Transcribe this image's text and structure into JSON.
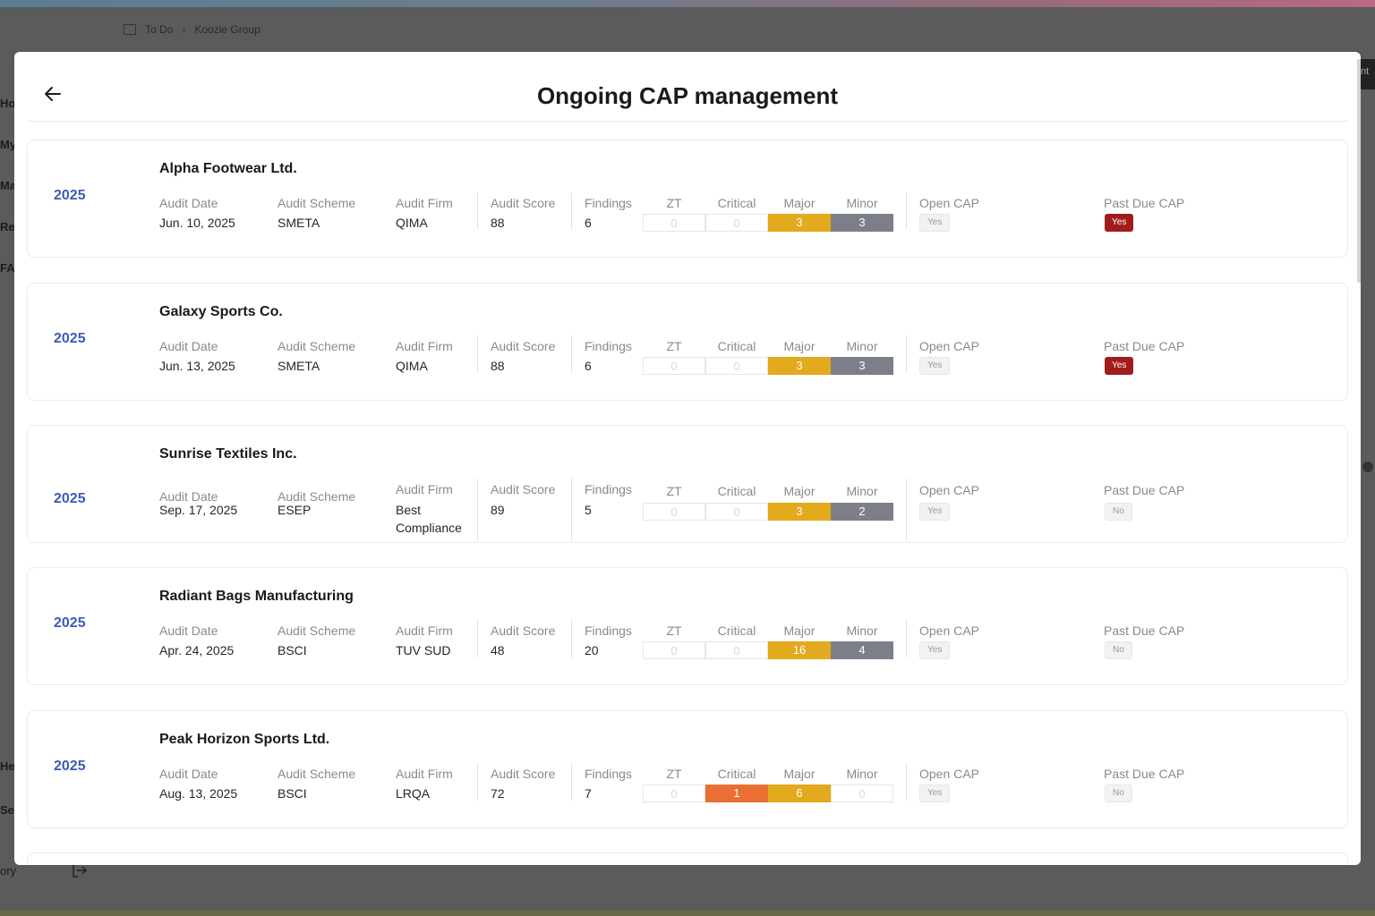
{
  "background": {
    "breadcrumb": {
      "item1": "To Do",
      "item2": "Koozie Group"
    },
    "side_items": [
      "Ho",
      "My",
      "Ma",
      "Re",
      "FA",
      "He",
      "Se",
      "ory"
    ],
    "right_tab": "nt"
  },
  "modal": {
    "title": "Ongoing CAP management",
    "labels": {
      "audit_date": "Audit Date",
      "audit_scheme": "Audit Scheme",
      "audit_firm": "Audit Firm",
      "audit_score": "Audit Score",
      "findings": "Findings",
      "zt": "ZT",
      "critical": "Critical",
      "major": "Major",
      "minor": "Minor",
      "open_cap": "Open CAP",
      "past_due_cap": "Past Due CAP"
    },
    "cards": [
      {
        "year": "2025",
        "name": "Alpha Footwear Ltd.",
        "audit_date": "Jun. 10, 2025",
        "audit_scheme": "SMETA",
        "audit_firm": "QIMA",
        "audit_score": "88",
        "findings": "6",
        "zt": "0",
        "critical": "0",
        "major": "3",
        "minor": "3",
        "open_cap": "Yes",
        "past_due_cap": "Yes"
      },
      {
        "year": "2025",
        "name": "Galaxy Sports Co.",
        "audit_date": "Jun. 13, 2025",
        "audit_scheme": "SMETA",
        "audit_firm": "QIMA",
        "audit_score": "88",
        "findings": "6",
        "zt": "0",
        "critical": "0",
        "major": "3",
        "minor": "3",
        "open_cap": "Yes",
        "past_due_cap": "Yes"
      },
      {
        "year": "2025",
        "name": "Sunrise Textiles Inc.",
        "audit_date": "Sep. 17, 2025",
        "audit_scheme": "ESEP",
        "audit_firm": "Best Compliance",
        "audit_score": "89",
        "findings": "5",
        "zt": "0",
        "critical": "0",
        "major": "3",
        "minor": "2",
        "open_cap": "Yes",
        "past_due_cap": "No"
      },
      {
        "year": "2025",
        "name": "Radiant Bags Manufacturing",
        "audit_date": "Apr. 24, 2025",
        "audit_scheme": "BSCI",
        "audit_firm": "TUV SUD",
        "audit_score": "48",
        "findings": "20",
        "zt": "0",
        "critical": "0",
        "major": "16",
        "minor": "4",
        "open_cap": "Yes",
        "past_due_cap": "No"
      },
      {
        "year": "2025",
        "name": "Peak Horizon Sports Ltd.",
        "audit_date": "Aug. 13, 2025",
        "audit_scheme": "BSCI",
        "audit_firm": "LRQA",
        "audit_score": "72",
        "findings": "7",
        "zt": "0",
        "critical": "1",
        "major": "6",
        "minor": "0",
        "open_cap": "Yes",
        "past_due_cap": "No"
      }
    ]
  },
  "colors": {
    "year": "#3d5bb5",
    "major": "#e2aa1c",
    "minor": "#7c7f89",
    "critical": "#ea6f34",
    "past_due_yes": "#a11d1d"
  },
  "icons": {
    "back": "arrow-left-icon",
    "breadcrumb": "building-icon",
    "exit": "logout-icon"
  }
}
